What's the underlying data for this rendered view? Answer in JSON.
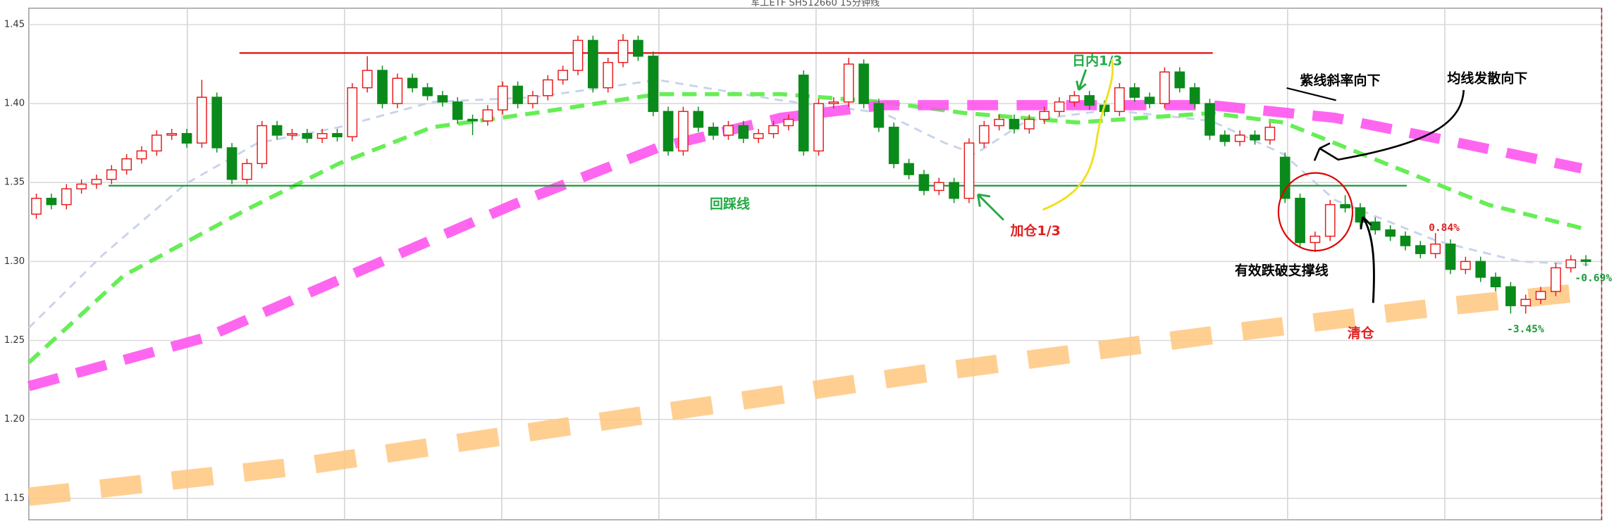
{
  "chart_data": {
    "type": "candlestick",
    "title": "军工ETF SH512660 15分钟线",
    "ylim": [
      1.1364,
      1.4604
    ],
    "yticks": [
      1.15,
      {
        "value": 1.2,
        "label": "1.20"
      },
      1.25,
      {
        "value": 1.3,
        "label": "1.30"
      },
      1.35,
      {
        "value": 1.4,
        "label": "1.40"
      },
      1.45
    ],
    "grid": true,
    "candles": {
      "up_color": "#e8191a",
      "down_color": "#0a8a1a",
      "open": [
        1.33,
        1.34,
        1.336,
        1.346,
        1.349,
        1.352,
        1.358,
        1.365,
        1.37,
        1.38,
        1.381,
        1.375,
        1.404,
        1.372,
        1.352,
        1.362,
        1.386,
        1.38,
        1.381,
        1.378,
        1.381,
        1.379,
        1.41,
        1.421,
        1.4,
        1.416,
        1.41,
        1.405,
        1.401,
        1.39,
        1.389,
        1.396,
        1.411,
        1.4,
        1.405,
        1.415,
        1.421,
        1.44,
        1.41,
        1.426,
        1.44,
        1.43,
        1.395,
        1.37,
        1.395,
        1.385,
        1.38,
        1.386,
        1.378,
        1.381,
        1.386,
        1.418,
        1.37,
        1.4,
        1.401,
        1.425,
        1.4,
        1.385,
        1.362,
        1.355,
        1.345,
        1.35,
        1.34,
        1.375,
        1.386,
        1.39,
        1.384,
        1.39,
        1.395,
        1.401,
        1.405,
        1.399,
        1.395,
        1.41,
        1.404,
        1.4,
        1.42,
        1.41,
        1.4,
        1.38,
        1.376,
        1.38,
        1.377,
        1.366,
        1.34,
        1.312,
        1.316,
        1.336,
        1.334,
        1.325,
        1.32,
        1.316,
        1.31,
        1.305,
        1.311,
        1.295,
        1.3,
        1.29,
        1.284,
        1.272,
        1.276,
        1.281,
        1.296,
        1.301
      ],
      "high": [
        1.343,
        1.343,
        1.349,
        1.352,
        1.355,
        1.361,
        1.368,
        1.373,
        1.383,
        1.384,
        1.384,
        1.415,
        1.407,
        1.375,
        1.365,
        1.389,
        1.389,
        1.384,
        1.384,
        1.384,
        1.384,
        1.413,
        1.43,
        1.424,
        1.419,
        1.419,
        1.413,
        1.408,
        1.404,
        1.393,
        1.399,
        1.414,
        1.414,
        1.408,
        1.418,
        1.424,
        1.443,
        1.443,
        1.429,
        1.444,
        1.443,
        1.433,
        1.398,
        1.398,
        1.398,
        1.388,
        1.389,
        1.389,
        1.384,
        1.389,
        1.393,
        1.421,
        1.403,
        1.404,
        1.429,
        1.428,
        1.403,
        1.388,
        1.365,
        1.358,
        1.353,
        1.353,
        1.378,
        1.389,
        1.393,
        1.393,
        1.393,
        1.398,
        1.404,
        1.408,
        1.408,
        1.402,
        1.413,
        1.413,
        1.407,
        1.423,
        1.423,
        1.413,
        1.403,
        1.383,
        1.383,
        1.383,
        1.388,
        1.369,
        1.343,
        1.319,
        1.339,
        1.342,
        1.337,
        1.328,
        1.323,
        1.319,
        1.313,
        1.318,
        1.314,
        1.303,
        1.303,
        1.293,
        1.287,
        1.279,
        1.284,
        1.299,
        1.304,
        1.304
      ],
      "low": [
        1.327,
        1.333,
        1.333,
        1.343,
        1.346,
        1.349,
        1.355,
        1.362,
        1.367,
        1.377,
        1.372,
        1.372,
        1.369,
        1.349,
        1.349,
        1.359,
        1.377,
        1.377,
        1.375,
        1.375,
        1.376,
        1.376,
        1.407,
        1.397,
        1.397,
        1.407,
        1.402,
        1.398,
        1.387,
        1.38,
        1.386,
        1.393,
        1.397,
        1.397,
        1.402,
        1.412,
        1.418,
        1.407,
        1.407,
        1.423,
        1.427,
        1.392,
        1.367,
        1.367,
        1.382,
        1.377,
        1.377,
        1.375,
        1.375,
        1.378,
        1.383,
        1.367,
        1.367,
        1.397,
        1.398,
        1.397,
        1.382,
        1.359,
        1.352,
        1.342,
        1.342,
        1.337,
        1.337,
        1.372,
        1.383,
        1.381,
        1.381,
        1.387,
        1.392,
        1.398,
        1.396,
        1.392,
        1.392,
        1.401,
        1.397,
        1.397,
        1.407,
        1.397,
        1.377,
        1.373,
        1.373,
        1.374,
        1.374,
        1.337,
        1.309,
        1.306,
        1.313,
        1.331,
        1.322,
        1.317,
        1.313,
        1.307,
        1.302,
        1.302,
        1.292,
        1.292,
        1.287,
        1.281,
        1.267,
        1.267,
        1.273,
        1.278,
        1.293,
        1.297
      ],
      "close": [
        1.34,
        1.336,
        1.346,
        1.349,
        1.352,
        1.358,
        1.365,
        1.37,
        1.38,
        1.381,
        1.375,
        1.404,
        1.372,
        1.352,
        1.362,
        1.386,
        1.38,
        1.381,
        1.378,
        1.381,
        1.379,
        1.41,
        1.421,
        1.4,
        1.416,
        1.41,
        1.405,
        1.401,
        1.39,
        1.389,
        1.396,
        1.411,
        1.4,
        1.405,
        1.415,
        1.421,
        1.44,
        1.41,
        1.426,
        1.44,
        1.43,
        1.395,
        1.37,
        1.395,
        1.385,
        1.38,
        1.386,
        1.378,
        1.381,
        1.386,
        1.39,
        1.37,
        1.4,
        1.401,
        1.425,
        1.4,
        1.385,
        1.362,
        1.355,
        1.345,
        1.35,
        1.34,
        1.375,
        1.386,
        1.39,
        1.384,
        1.39,
        1.395,
        1.401,
        1.405,
        1.399,
        1.395,
        1.41,
        1.404,
        1.4,
        1.42,
        1.41,
        1.4,
        1.38,
        1.376,
        1.38,
        1.377,
        1.385,
        1.34,
        1.312,
        1.316,
        1.336,
        1.334,
        1.325,
        1.32,
        1.316,
        1.31,
        1.305,
        1.311,
        1.295,
        1.3,
        1.29,
        1.284,
        1.272,
        1.276,
        1.281,
        1.296,
        1.301,
        1.3
      ]
    },
    "lines": [
      {
        "color": "#c9d3ea",
        "x": [
          -0.5,
          4.4,
          9.9,
          14.7,
          20.1,
          26.3,
          33.1,
          41.3,
          49.5,
          56.3,
          60.4,
          62.4,
          65.8,
          71.3,
          78.1,
          82.9,
          86.3,
          93.1,
          98.6,
          103.2
        ],
        "values": [
          1.258,
          1.304,
          1.349,
          1.375,
          1.385,
          1.401,
          1.404,
          1.415,
          1.402,
          1.394,
          1.375,
          1.368,
          1.389,
          1.396,
          1.389,
          1.368,
          1.339,
          1.313,
          1.3,
          1.298
        ]
      },
      {
        "color": "#66ee55",
        "x": [
          -0.5,
          5.8,
          14.0,
          20.1,
          26.3,
          33.1,
          41.3,
          49.5,
          56.3,
          61.7,
          69.2,
          78.1,
          82.9,
          89.7,
          96.5,
          103.2
        ],
        "values": [
          1.236,
          1.291,
          1.333,
          1.362,
          1.385,
          1.394,
          1.406,
          1.406,
          1.401,
          1.394,
          1.388,
          1.394,
          1.388,
          1.362,
          1.336,
          1.32
        ]
      },
      {
        "color": "#ff55ee",
        "x": [
          -0.5,
          11.3,
          21.5,
          31.7,
          41.3,
          49.5,
          56.3,
          65.8,
          78.1,
          86.3,
          93.1,
          102.7
        ],
        "values": [
          1.221,
          1.252,
          1.294,
          1.336,
          1.372,
          1.391,
          1.399,
          1.399,
          1.399,
          1.391,
          1.378,
          1.359
        ]
      },
      {
        "color": "#ffc77f",
        "x": [
          -0.5,
          18.1,
          38.5,
          59.0,
          79.5,
          93.1,
          103.2
        ],
        "values": [
          1.151,
          1.171,
          1.2,
          1.229,
          1.255,
          1.271,
          1.281
        ]
      }
    ],
    "hlines": [
      {
        "y": 1.432,
        "x": [
          13.5,
          78.2
        ],
        "color": "#e00000"
      },
      {
        "y": 1.348,
        "x": [
          4.8,
          91.1
        ],
        "color": "#1a9a3a"
      }
    ],
    "annotations": {
      "support": "回踩线",
      "add": "加仓1/3",
      "intraday": "日内1/3",
      "slope": "紫线斜率向下",
      "diverge": "均线发散向下",
      "break": "有效跌破支撑线",
      "clear": "清仓",
      "pct_up": "0.84%",
      "pct_last": "-0.69%",
      "pct_low": "-3.45%"
    }
  }
}
